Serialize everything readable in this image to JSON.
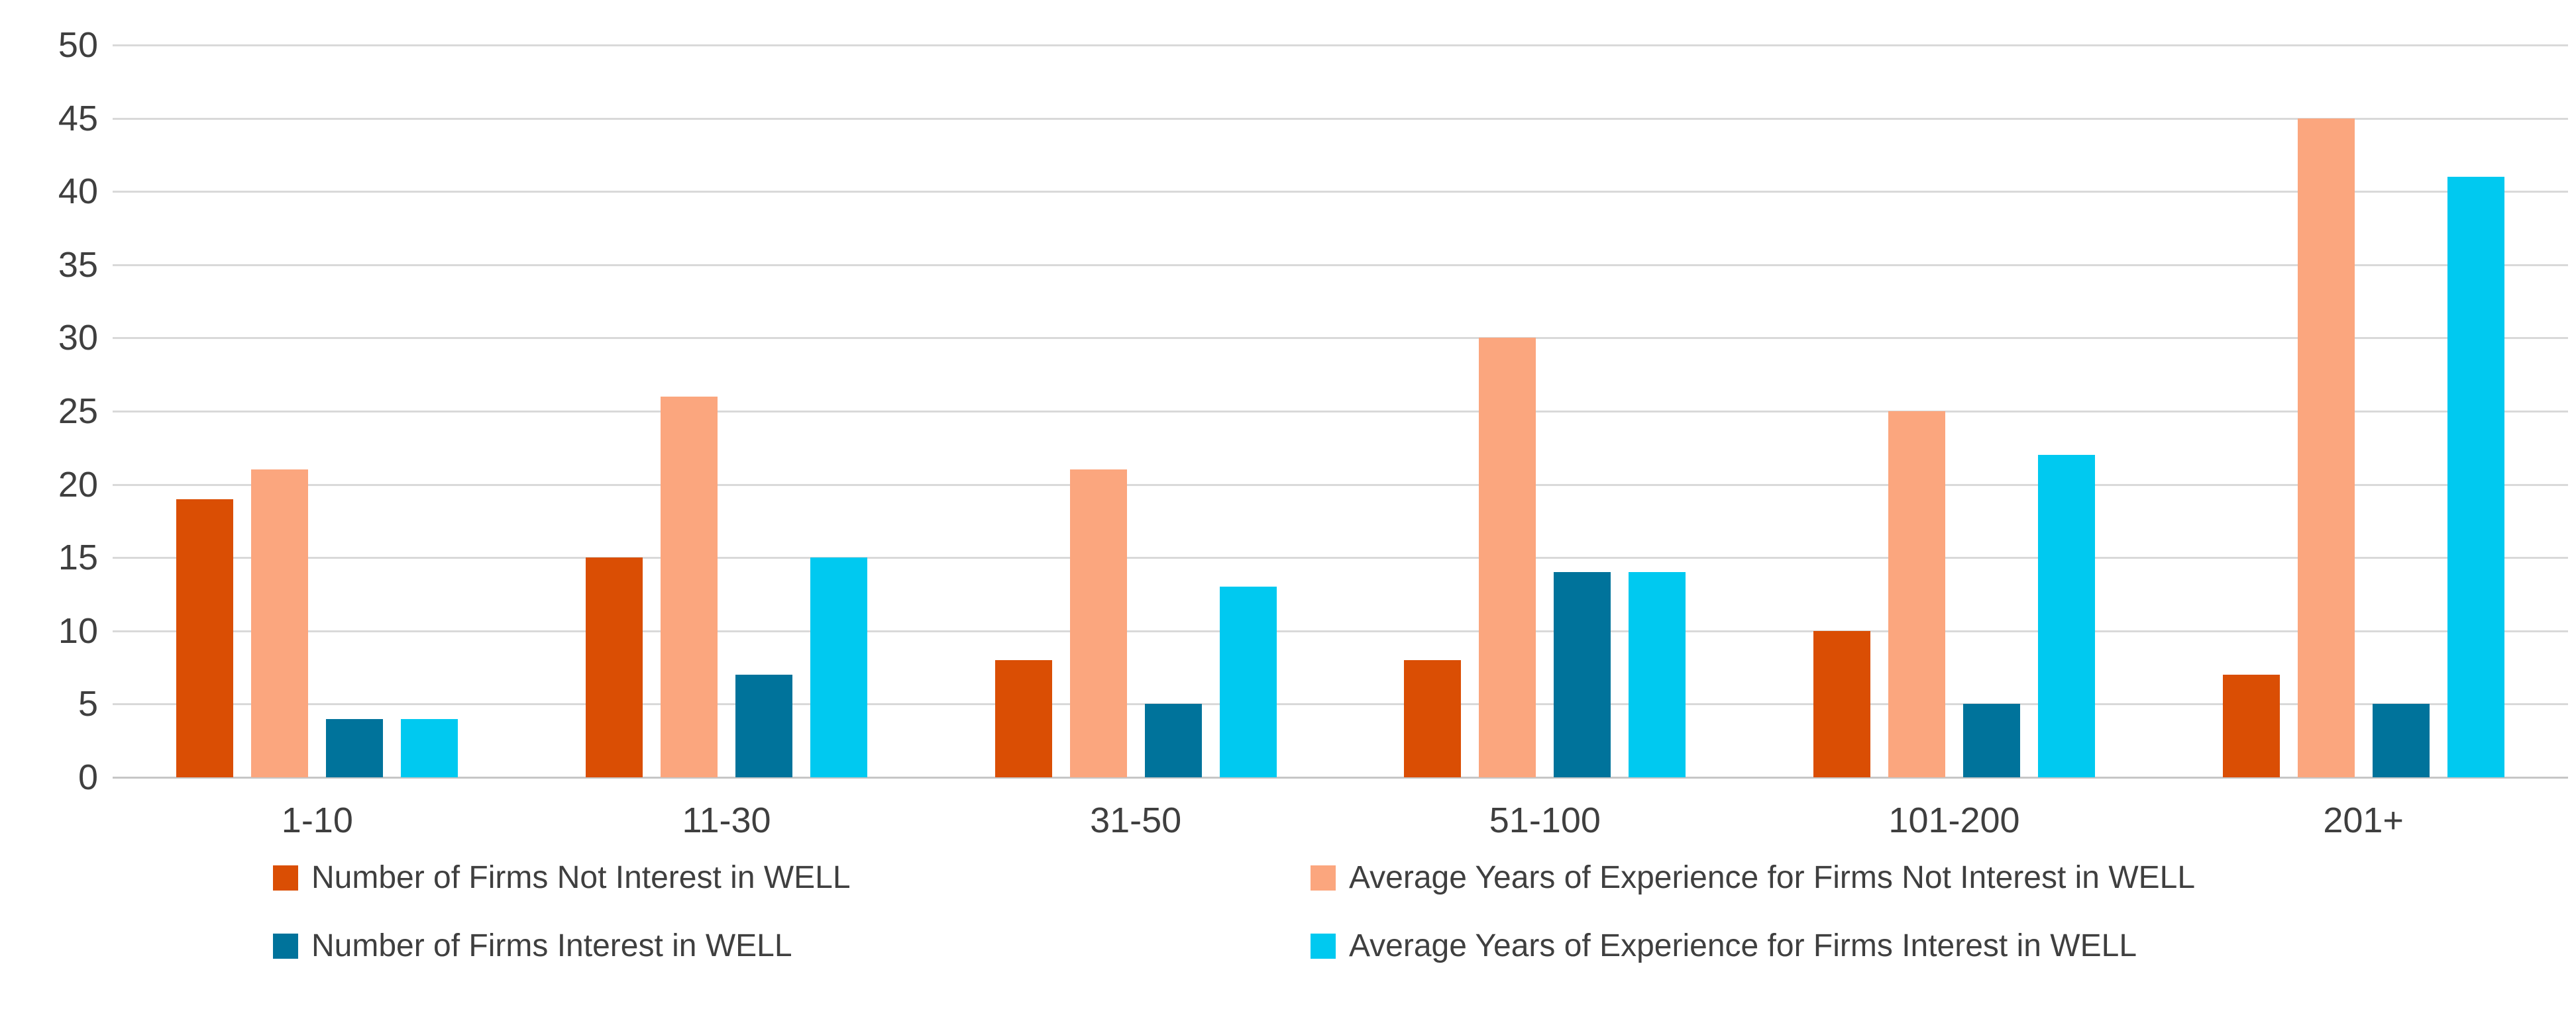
{
  "chart_data": {
    "type": "bar",
    "title": "",
    "categories": [
      "1-10",
      "11-30",
      "31-50",
      "51-100",
      "101-200",
      "201+"
    ],
    "series": [
      {
        "name": "Number of Firms Not Interest in WELL",
        "color": "#da4e04",
        "values": [
          19,
          15,
          8,
          8,
          10,
          7
        ]
      },
      {
        "name": "Average Years of Experience for Firms Not Interest in WELL",
        "color": "#fba67e",
        "values": [
          21,
          26,
          21,
          30,
          25,
          45
        ]
      },
      {
        "name": "Number of Firms Interest in WELL",
        "color": "#00739b",
        "values": [
          4,
          7,
          5,
          14,
          5,
          5
        ]
      },
      {
        "name": "Average Years of Experience for Firms Interest in WELL",
        "color": "#00c9f0",
        "values": [
          4,
          15,
          13,
          14,
          22,
          41
        ]
      }
    ],
    "xlabel": "",
    "ylabel": "",
    "ylim": [
      0,
      50
    ],
    "ytick_step": 5,
    "yticks": [
      "0",
      "5",
      "10",
      "15",
      "20",
      "25",
      "30",
      "35",
      "40",
      "45",
      "50"
    ],
    "grid": "horizontal-only",
    "legend_position": "bottom",
    "legend_layout_columns": [
      [
        0,
        2
      ],
      [
        1,
        3
      ]
    ]
  },
  "colors": {
    "background": "#ffffff",
    "gridline": "#d9d9d9",
    "axis_line": "#c6c6c6",
    "tick_label": "#3f3f3f"
  }
}
